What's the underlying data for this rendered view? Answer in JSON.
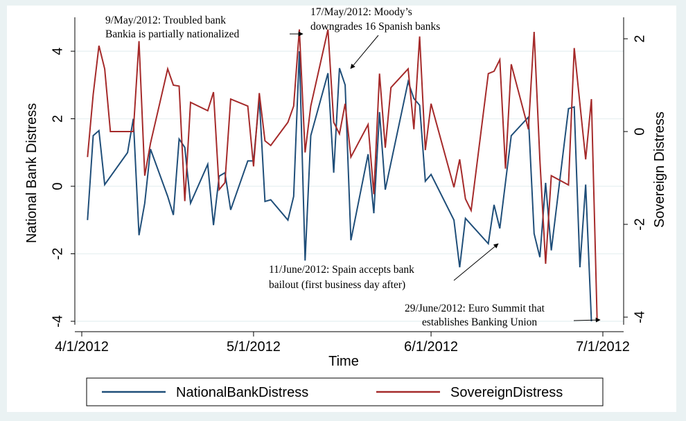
{
  "chart_data": {
    "type": "line",
    "xlabel": "Time",
    "ylabel": "National Bank Distress",
    "y2label": "Sovereign Distress",
    "x_tick_labels": [
      "4/1/2012",
      "5/1/2012",
      "6/1/2012",
      "7/1/2012"
    ],
    "y_ticks": [
      "4",
      "2",
      "0",
      "-2",
      "-4"
    ],
    "y2_ticks": [
      "2",
      "0",
      "-2",
      "-4"
    ],
    "ylim": [
      -4,
      4
    ],
    "y2lim": [
      -4,
      2
    ],
    "grid": "horizontal",
    "legend_position": "bottom",
    "series": [
      {
        "name": "NationalBankDistress",
        "axis": "left",
        "color": "#1f4e79",
        "points": [
          [
            "2012-04-02",
            -1.0
          ],
          [
            "2012-04-03",
            1.5
          ],
          [
            "2012-04-04",
            1.65
          ],
          [
            "2012-04-05",
            0.05
          ],
          [
            "2012-04-09",
            1.0
          ],
          [
            "2012-04-10",
            2.0
          ],
          [
            "2012-04-11",
            -1.45
          ],
          [
            "2012-04-12",
            -0.5
          ],
          [
            "2012-04-13",
            1.1
          ],
          [
            "2012-04-16",
            -0.3
          ],
          [
            "2012-04-17",
            -0.85
          ],
          [
            "2012-04-18",
            1.4
          ],
          [
            "2012-04-19",
            1.15
          ],
          [
            "2012-04-20",
            -0.5
          ],
          [
            "2012-04-23",
            0.65
          ],
          [
            "2012-04-24",
            -1.15
          ],
          [
            "2012-04-25",
            0.3
          ],
          [
            "2012-04-26",
            0.4
          ],
          [
            "2012-04-27",
            -0.7
          ],
          [
            "2012-04-30",
            0.75
          ],
          [
            "2012-05-01",
            0.75
          ],
          [
            "2012-05-02",
            2.6
          ],
          [
            "2012-05-03",
            -0.45
          ],
          [
            "2012-05-04",
            -0.4
          ],
          [
            "2012-05-07",
            -1.0
          ],
          [
            "2012-05-08",
            -0.3
          ],
          [
            "2012-05-09",
            4.0
          ],
          [
            "2012-05-10",
            -2.2
          ],
          [
            "2012-05-11",
            1.5
          ],
          [
            "2012-05-14",
            3.35
          ],
          [
            "2012-05-15",
            0.4
          ],
          [
            "2012-05-16",
            3.5
          ],
          [
            "2012-05-17",
            3.0
          ],
          [
            "2012-05-18",
            -1.6
          ],
          [
            "2012-05-21",
            0.95
          ],
          [
            "2012-05-22",
            -0.8
          ],
          [
            "2012-05-23",
            2.2
          ],
          [
            "2012-05-24",
            -0.1
          ],
          [
            "2012-05-28",
            3.1
          ],
          [
            "2012-05-29",
            2.6
          ],
          [
            "2012-05-30",
            2.4
          ],
          [
            "2012-05-31",
            0.15
          ],
          [
            "2012-06-01",
            0.35
          ],
          [
            "2012-06-05",
            -1.0
          ],
          [
            "2012-06-06",
            -2.4
          ],
          [
            "2012-06-07",
            -0.95
          ],
          [
            "2012-06-11",
            -1.7
          ],
          [
            "2012-06-12",
            -0.55
          ],
          [
            "2012-06-13",
            -1.25
          ],
          [
            "2012-06-15",
            1.5
          ],
          [
            "2012-06-18",
            2.05
          ],
          [
            "2012-06-19",
            -1.4
          ],
          [
            "2012-06-20",
            -2.1
          ],
          [
            "2012-06-21",
            0.1
          ],
          [
            "2012-06-22",
            -1.9
          ],
          [
            "2012-06-25",
            2.3
          ],
          [
            "2012-06-26",
            2.35
          ],
          [
            "2012-06-27",
            -2.4
          ],
          [
            "2012-06-28",
            0.05
          ],
          [
            "2012-06-29",
            -4.0
          ]
        ]
      },
      {
        "name": "SovereignDistress",
        "axis": "right",
        "color": "#a52a2a",
        "points": [
          [
            "2012-04-02",
            -0.55
          ],
          [
            "2012-04-03",
            0.8
          ],
          [
            "2012-04-04",
            1.85
          ],
          [
            "2012-04-05",
            1.35
          ],
          [
            "2012-04-06",
            0.0
          ],
          [
            "2012-04-09",
            0.0
          ],
          [
            "2012-04-10",
            0.0
          ],
          [
            "2012-04-11",
            1.95
          ],
          [
            "2012-04-12",
            -0.95
          ],
          [
            "2012-04-13",
            -0.25
          ],
          [
            "2012-04-16",
            1.35
          ],
          [
            "2012-04-17",
            1.0
          ],
          [
            "2012-04-18",
            0.98
          ],
          [
            "2012-04-19",
            -1.5
          ],
          [
            "2012-04-20",
            0.63
          ],
          [
            "2012-04-23",
            0.45
          ],
          [
            "2012-04-24",
            0.85
          ],
          [
            "2012-04-25",
            -1.25
          ],
          [
            "2012-04-26",
            -1.1
          ],
          [
            "2012-04-27",
            0.7
          ],
          [
            "2012-04-30",
            0.55
          ],
          [
            "2012-05-01",
            -0.75
          ],
          [
            "2012-05-02",
            0.83
          ],
          [
            "2012-05-03",
            -0.2
          ],
          [
            "2012-05-04",
            -0.3
          ],
          [
            "2012-05-07",
            0.2
          ],
          [
            "2012-05-08",
            0.55
          ],
          [
            "2012-05-09",
            2.2
          ],
          [
            "2012-05-10",
            -0.45
          ],
          [
            "2012-05-11",
            0.55
          ],
          [
            "2012-05-14",
            2.2
          ],
          [
            "2012-05-15",
            0.2
          ],
          [
            "2012-05-16",
            -0.05
          ],
          [
            "2012-05-17",
            0.6
          ],
          [
            "2012-05-18",
            -0.55
          ],
          [
            "2012-05-21",
            0.15
          ],
          [
            "2012-05-22",
            -1.35
          ],
          [
            "2012-05-23",
            1.25
          ],
          [
            "2012-05-24",
            -0.35
          ],
          [
            "2012-05-25",
            0.95
          ],
          [
            "2012-05-28",
            1.35
          ],
          [
            "2012-05-29",
            0.05
          ],
          [
            "2012-05-30",
            2.05
          ],
          [
            "2012-05-31",
            -0.4
          ],
          [
            "2012-06-01",
            0.6
          ],
          [
            "2012-06-05",
            -1.2
          ],
          [
            "2012-06-06",
            -0.6
          ],
          [
            "2012-06-07",
            -1.45
          ],
          [
            "2012-06-08",
            -1.7
          ],
          [
            "2012-06-11",
            1.25
          ],
          [
            "2012-06-12",
            1.3
          ],
          [
            "2012-06-13",
            1.55
          ],
          [
            "2012-06-14",
            -0.8
          ],
          [
            "2012-06-15",
            1.45
          ],
          [
            "2012-06-18",
            0.05
          ],
          [
            "2012-06-19",
            2.15
          ],
          [
            "2012-06-20",
            -0.6
          ],
          [
            "2012-06-21",
            -2.85
          ],
          [
            "2012-06-22",
            -0.95
          ],
          [
            "2012-06-25",
            -1.15
          ],
          [
            "2012-06-26",
            1.8
          ],
          [
            "2012-06-27",
            0.6
          ],
          [
            "2012-06-28",
            -0.6
          ],
          [
            "2012-06-29",
            0.7
          ],
          [
            "2012-06-30",
            -4.05
          ]
        ]
      }
    ],
    "annotations": [
      {
        "lines": [
          "9/May/2012: Troubled bank",
          "Bankia is partially nationalized"
        ]
      },
      {
        "lines": [
          "17/May/2012: Moody’s",
          "downgrades 16 Spanish banks"
        ]
      },
      {
        "lines": [
          "11/June/2012: Spain accepts bank",
          "bailout (first business day after)"
        ]
      },
      {
        "lines": [
          "29/June/2012: Euro Summit that",
          "establishes Banking Union"
        ]
      }
    ]
  }
}
